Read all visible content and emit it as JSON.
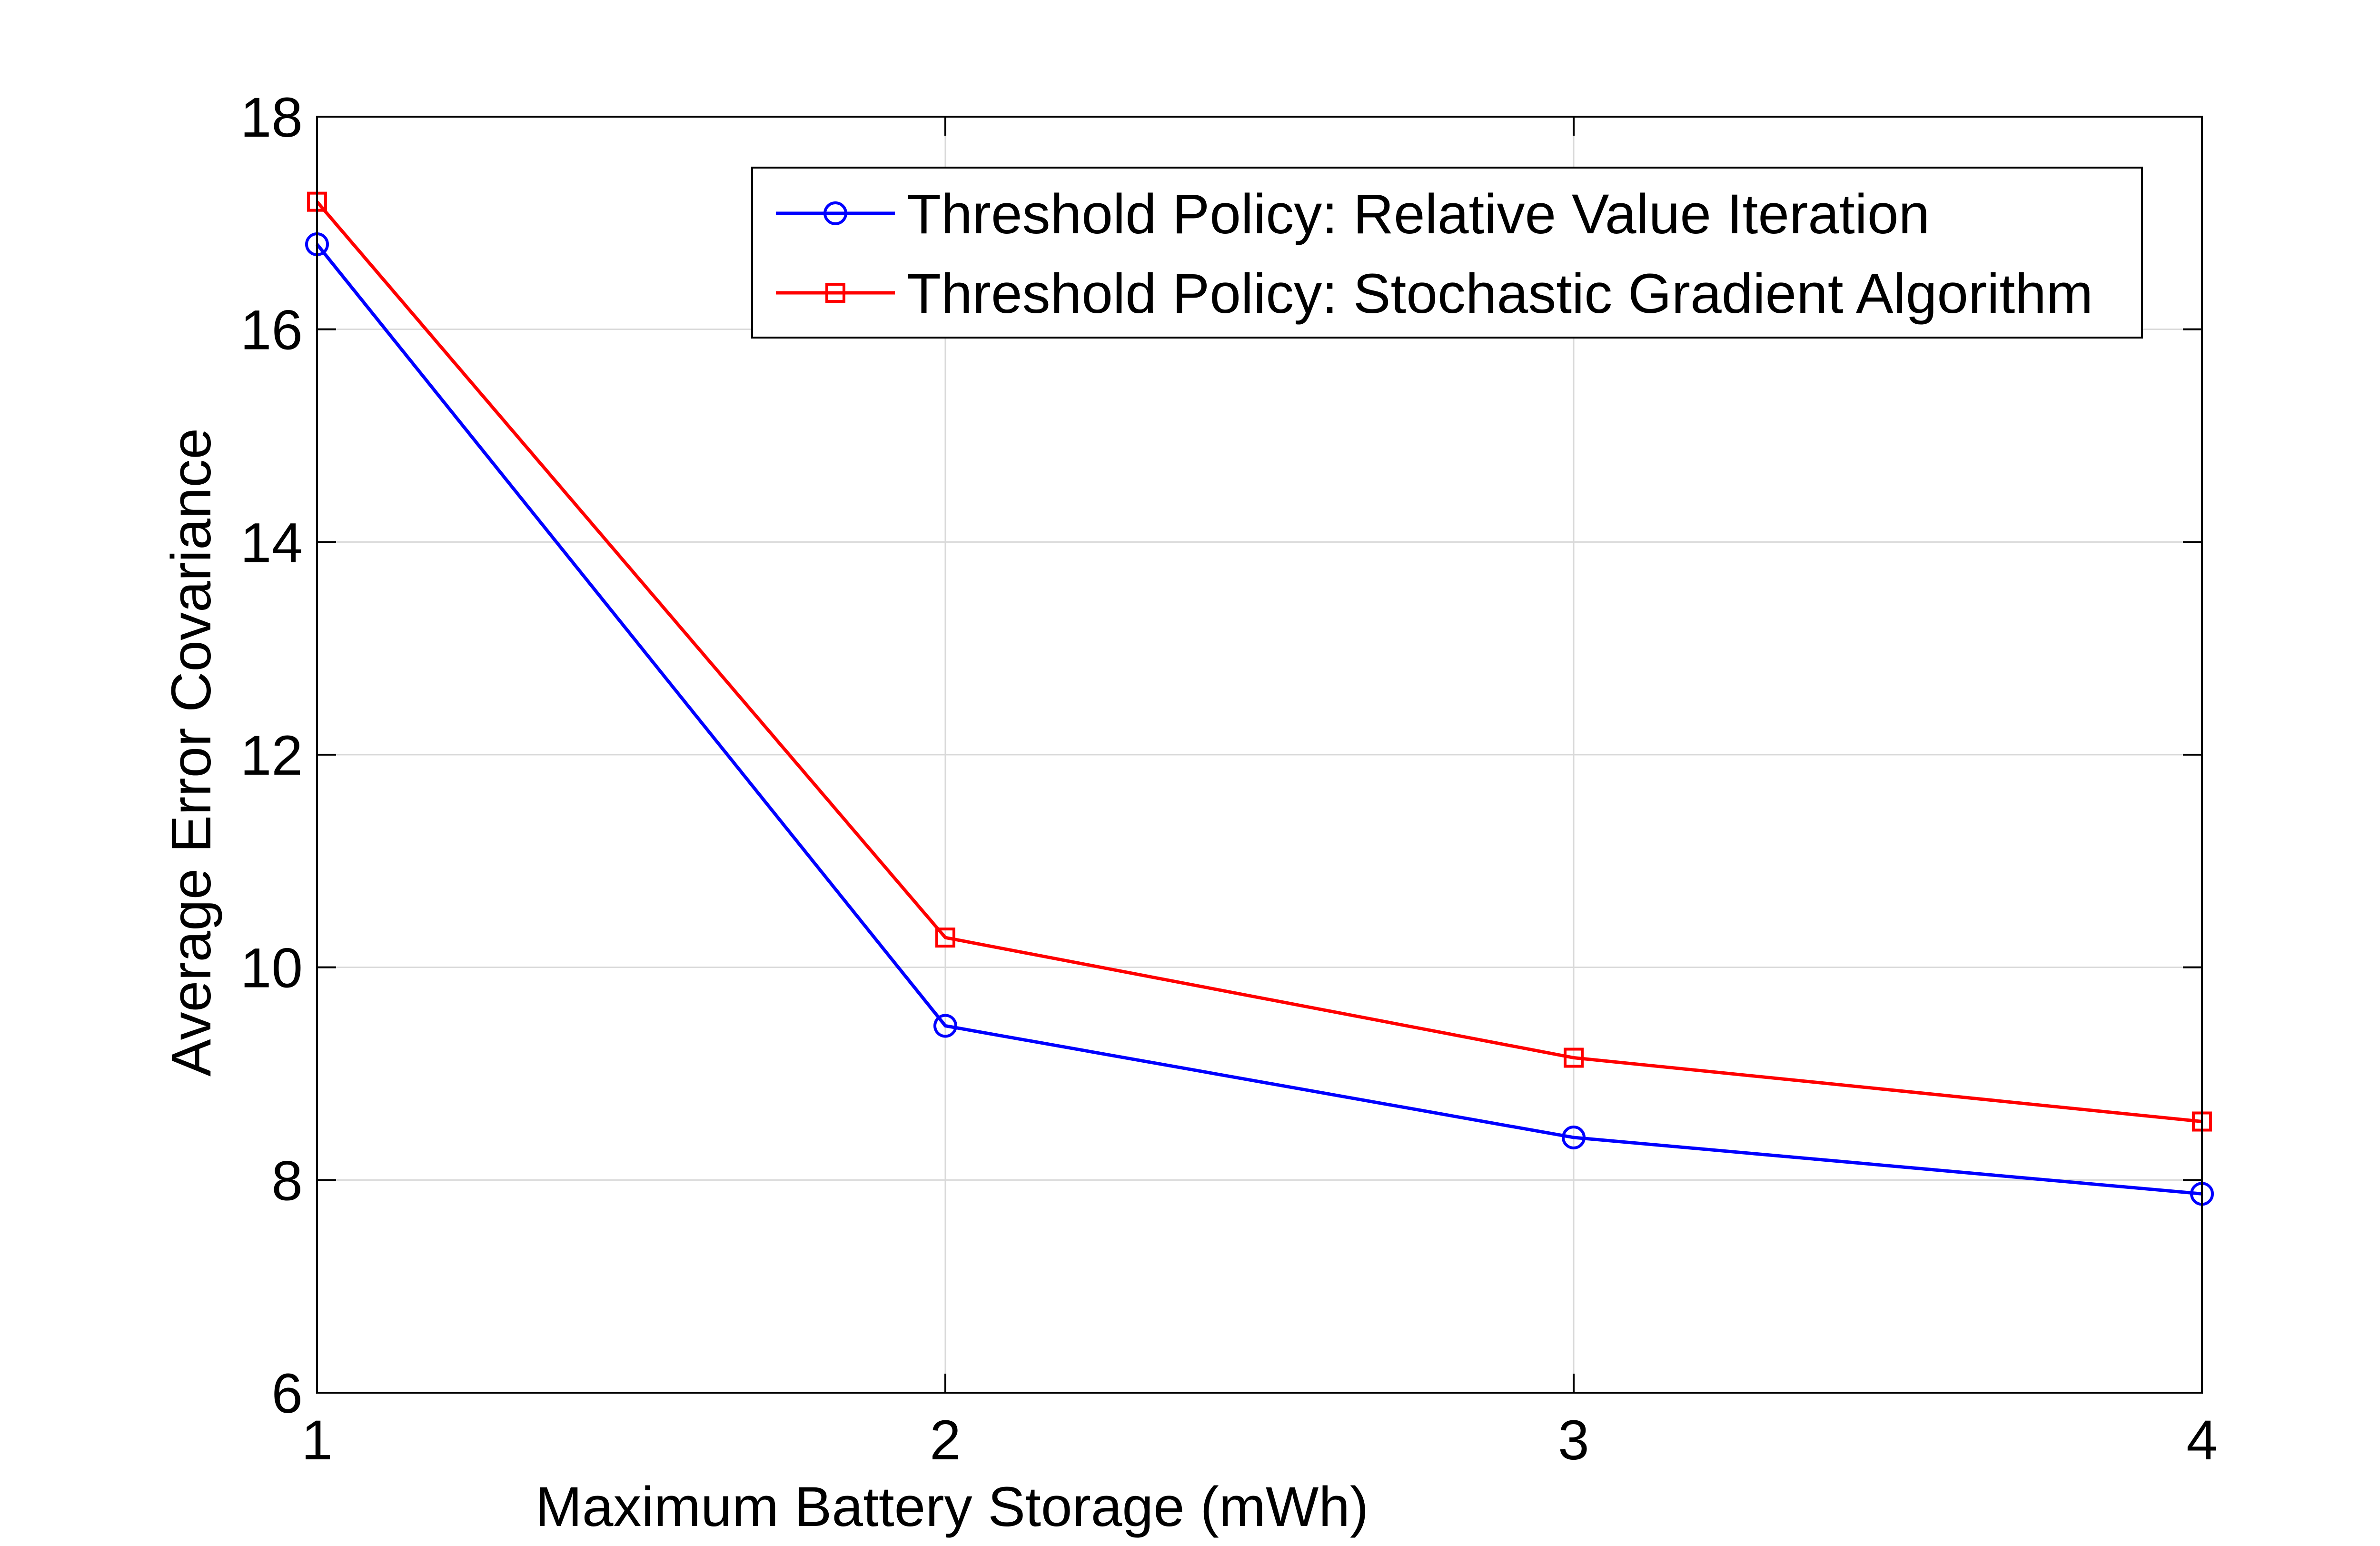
{
  "chart_data": {
    "type": "line",
    "title": "",
    "xlabel": "Maximum Battery Storage (mWh)",
    "ylabel": "Average Error Covariance",
    "x": [
      1,
      2,
      3,
      4
    ],
    "xlim": [
      1,
      4
    ],
    "ylim": [
      6,
      18
    ],
    "xticks": [
      "1",
      "2",
      "3",
      "4"
    ],
    "yticks": [
      "6",
      "8",
      "10",
      "12",
      "14",
      "16",
      "18"
    ],
    "grid": true,
    "legend_position": "top-right",
    "series": [
      {
        "name": "Threshold Policy: Relative Value Iteration",
        "color": "#0000ff",
        "marker": "circle",
        "values": [
          16.8,
          9.45,
          8.4,
          7.87
        ]
      },
      {
        "name": "Threshold Policy: Stochastic Gradient Algorithm",
        "color": "#ff0000",
        "marker": "square",
        "values": [
          17.2,
          10.28,
          9.15,
          8.55
        ]
      }
    ]
  }
}
